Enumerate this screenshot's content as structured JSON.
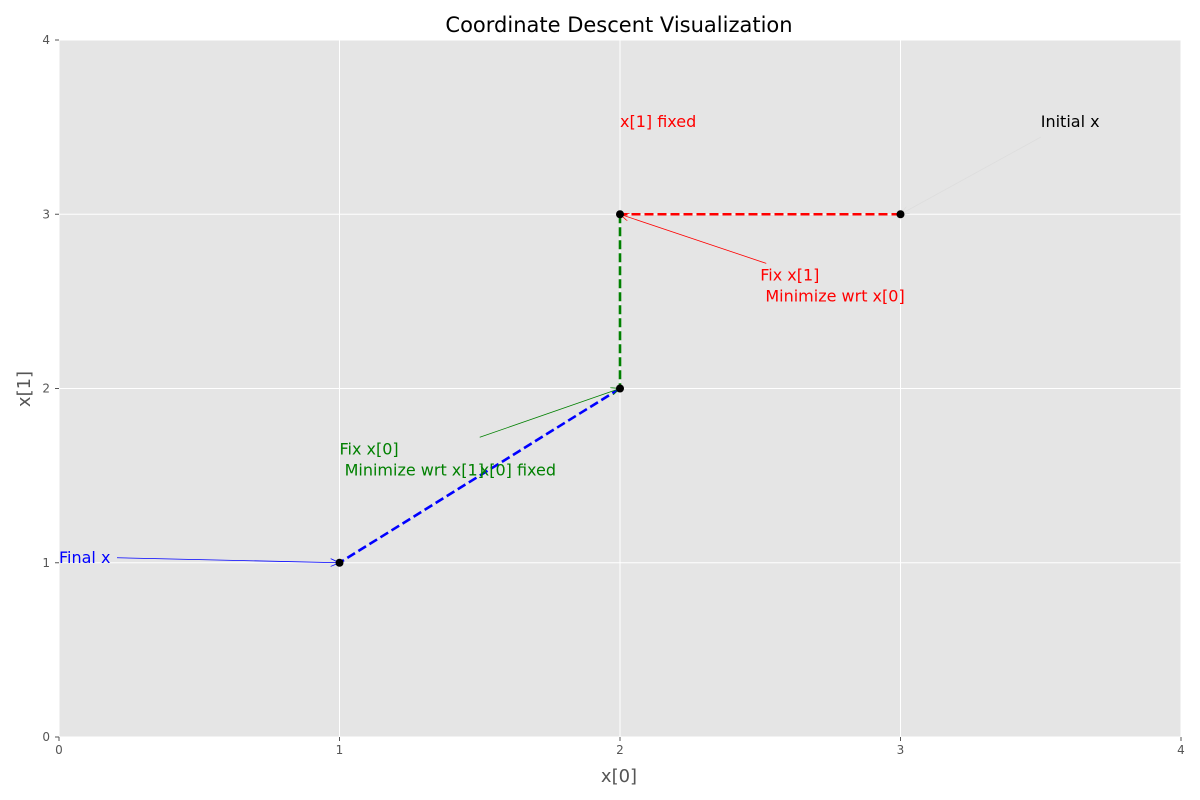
{
  "chart_data": {
    "type": "line",
    "title": "Coordinate Descent Visualization",
    "xlabel": "x[0]",
    "ylabel": "x[1]",
    "xlim": [
      0,
      4
    ],
    "ylim": [
      0,
      4
    ],
    "xticks": [
      0,
      1,
      2,
      3,
      4
    ],
    "yticks": [
      0,
      1,
      2,
      3,
      4
    ],
    "grid": true,
    "background": "#e5e5e5",
    "points": [
      {
        "x": 3,
        "y": 3
      },
      {
        "x": 2,
        "y": 3
      },
      {
        "x": 2,
        "y": 2
      },
      {
        "x": 1,
        "y": 1
      }
    ],
    "segments": [
      {
        "from": [
          3,
          3
        ],
        "to": [
          2,
          3
        ],
        "color": "#ff0000",
        "style": "dashed"
      },
      {
        "from": [
          2,
          3
        ],
        "to": [
          2,
          2
        ],
        "color": "#008000",
        "style": "dashed"
      },
      {
        "from": [
          2,
          2
        ],
        "to": [
          1,
          1
        ],
        "color": "#0000ff",
        "style": "dashed"
      }
    ],
    "annotations": [
      {
        "text": "Initial x",
        "x": 3.5,
        "y": 3.5,
        "target": [
          3,
          3
        ],
        "color": "#000000",
        "arrow_color": "#dddddd"
      },
      {
        "text": "Fix x[1]\n Minimize wrt x[0]",
        "x": 2.5,
        "y": 2.5,
        "target": [
          2,
          3
        ],
        "color": "#ff0000",
        "arrow_color": "#ff0000"
      },
      {
        "text": "x[1] fixed",
        "x": 2.0,
        "y": 3.5,
        "target": null,
        "color": "#ff0000"
      },
      {
        "text": "Fix x[0]\n Minimize wrt x[1]",
        "x": 1.0,
        "y": 1.5,
        "target": [
          2,
          2
        ],
        "arrow_from": [
          1.5,
          1.72
        ],
        "color": "#008000",
        "arrow_color": "#008000"
      },
      {
        "text": "x[0] fixed",
        "x": 1.5,
        "y": 1.5,
        "target": null,
        "color": "#008000"
      },
      {
        "text": "Final x",
        "x": 0,
        "y": 1.0,
        "target": [
          1,
          1
        ],
        "color": "#0000ff",
        "arrow_color": "#0000ff"
      }
    ]
  }
}
